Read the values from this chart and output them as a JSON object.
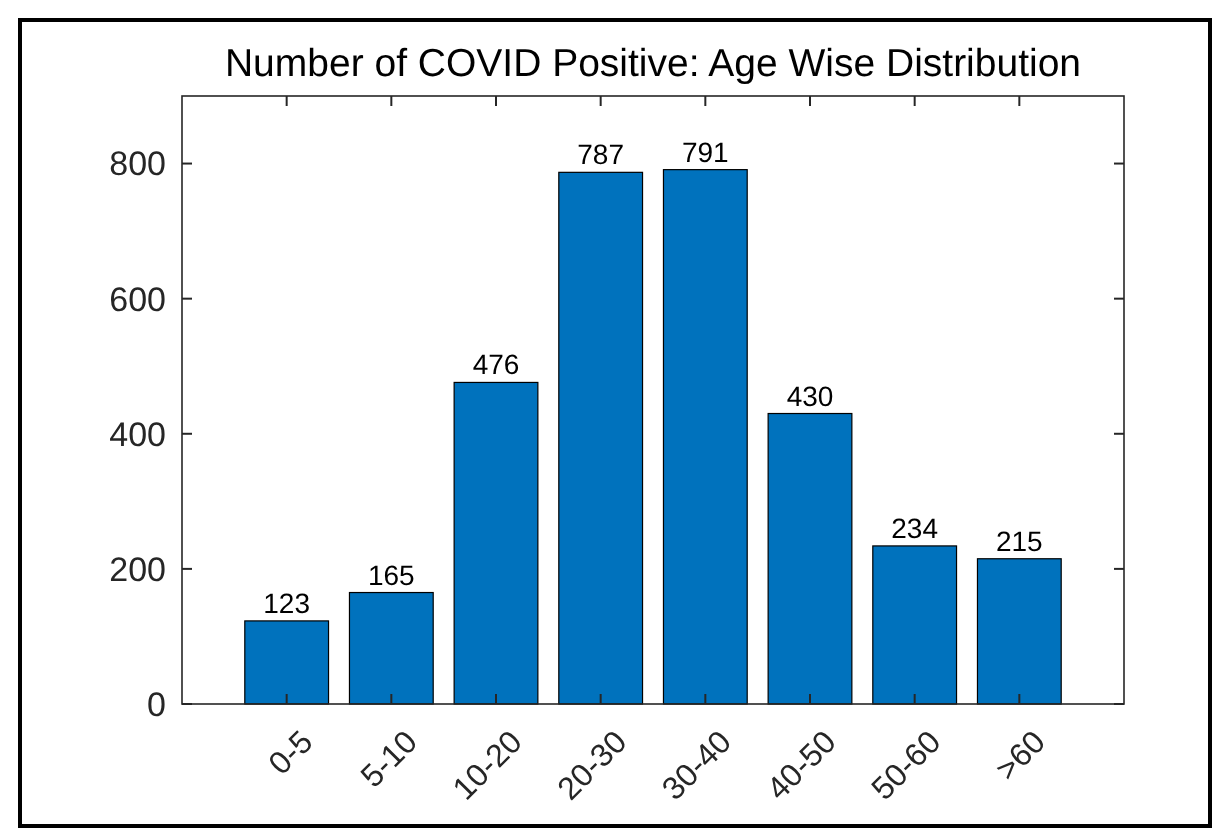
{
  "chart_data": {
    "type": "bar",
    "title": "Number of COVID Positive: Age Wise Distribution",
    "categories": [
      "0-5",
      "5-10",
      "10-20",
      "20-30",
      "30-40",
      "40-50",
      "50-60",
      ">60"
    ],
    "values": [
      123,
      165,
      476,
      787,
      791,
      430,
      234,
      215
    ],
    "color": "#0072bd",
    "ylim": [
      0,
      900
    ],
    "yticks": [
      0,
      200,
      400,
      600,
      800
    ],
    "data_labels": true
  }
}
